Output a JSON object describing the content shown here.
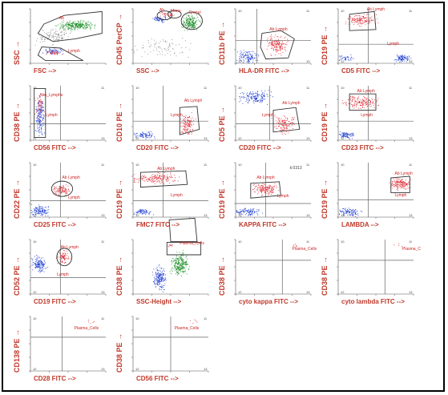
{
  "colors": {
    "label": "#c0392b",
    "gate": "#333333",
    "gate_text": "#cc2222",
    "blue": "#1f3fd1",
    "red": "#e0303a",
    "green": "#1e8f2a",
    "grey": "#8a8a8a"
  },
  "plots": [
    {
      "ylabel": "SSC",
      "xlabel": "FSC",
      "gates": [
        "Ab",
        "Lymph"
      ],
      "annotation": ""
    },
    {
      "ylabel": "CD45 PerCP",
      "xlabel": "SSC",
      "gates": [
        "Ab",
        "Mono",
        "Granul"
      ],
      "annotation": ""
    },
    {
      "ylabel": "CD11b PE",
      "xlabel": "HLA-DR FITC",
      "gates": [
        "Ab Lymph"
      ],
      "annotation": ""
    },
    {
      "ylabel": "CD19 PE",
      "xlabel": "CD5 FITC",
      "gates": [
        "Ab Lymph",
        "Lymph"
      ],
      "annotation": ""
    },
    {
      "ylabel": "CD38 PE",
      "xlabel": "CD56 FITC",
      "gates": [
        "Abn_Lymphs",
        "Lymph"
      ],
      "annotation": ""
    },
    {
      "ylabel": "CD10 PE",
      "xlabel": "CD20 FITC",
      "gates": [
        "Ab Lymph",
        "Lymph"
      ],
      "annotation": ""
    },
    {
      "ylabel": "CD5 PE",
      "xlabel": "CD20 FITC",
      "gates": [
        "Ab Lymph",
        "Lymph"
      ],
      "annotation": ""
    },
    {
      "ylabel": "CD19 PE",
      "xlabel": "CD23 FITC",
      "gates": [
        "Ab Lymph",
        "Lymph"
      ],
      "annotation": ""
    },
    {
      "ylabel": "CD22 PE",
      "xlabel": "CD25 FITC",
      "gates": [
        "Ab Lymph",
        "Lymph"
      ],
      "annotation": ""
    },
    {
      "ylabel": "CD19 PE",
      "xlabel": "FMC7 FITC",
      "gates": [
        "Ab Lymph",
        "Lymph"
      ],
      "annotation": ""
    },
    {
      "ylabel": "CD19 PE",
      "xlabel": "KAPPA FITC",
      "gates": [
        "Ab Lymph",
        "Lymph"
      ],
      "annotation": "k:0313"
    },
    {
      "ylabel": "CD19 PE",
      "xlabel": "LAMBDA",
      "gates": [
        "Ab Lymph",
        "Lymph"
      ],
      "annotation": ""
    },
    {
      "ylabel": "CD52 PE",
      "xlabel": "CD19 FITC",
      "gates": [
        "Ab Lymph",
        "Lymph"
      ],
      "annotation": ""
    },
    {
      "ylabel": "CD38 PE",
      "xlabel": "SSC-Height",
      "gates": [
        "Plasma_Cells"
      ],
      "annotation": ""
    },
    {
      "ylabel": "CD38 PE",
      "xlabel": "cyto kappa FITC",
      "gates": [
        "Plasma_Cells"
      ],
      "annotation": ""
    },
    {
      "ylabel": "CD38 PE",
      "xlabel": "cyto lambda FITC",
      "gates": [
        "Plasma_C"
      ],
      "annotation": ""
    },
    {
      "ylabel": "CD138 PE",
      "xlabel": "CD28 FITC",
      "gates": [
        "Plasma_Cells"
      ],
      "annotation": ""
    },
    {
      "ylabel": "CD38 PE",
      "xlabel": "CD56 FITC",
      "gates": [
        "Plasma_Cells"
      ],
      "annotation": ""
    }
  ],
  "quadrant_labels": [
    "10",
    "11",
    "12",
    "13"
  ]
}
